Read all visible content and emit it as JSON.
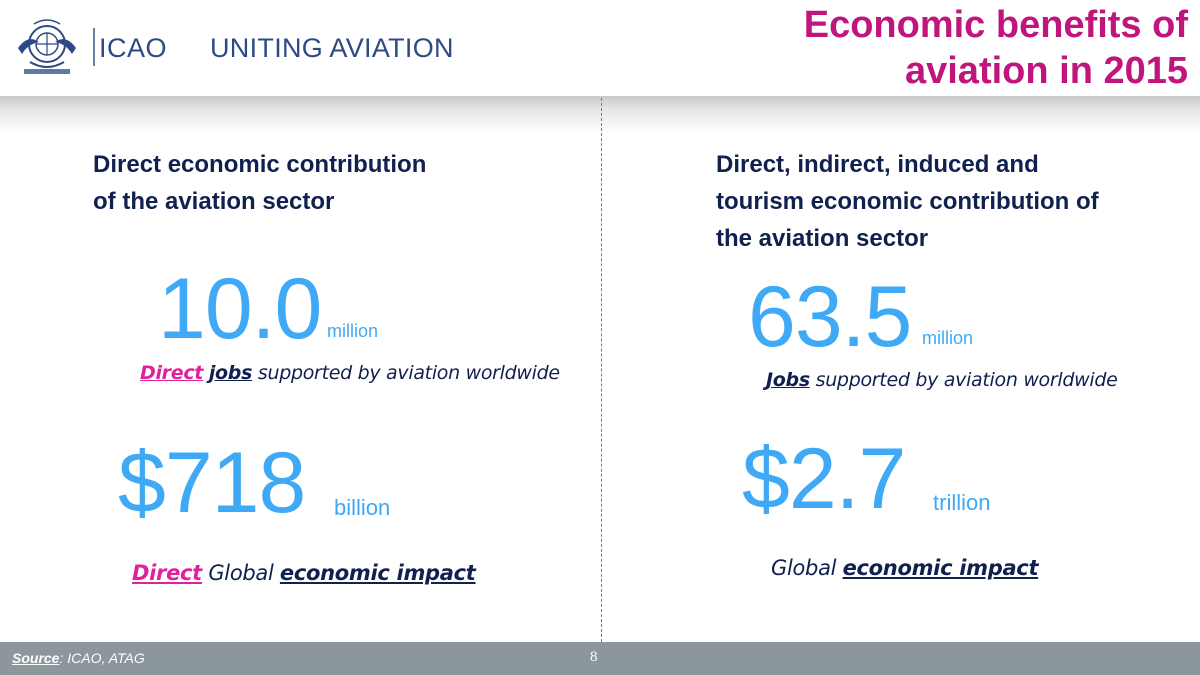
{
  "header": {
    "org_name": "ICAO",
    "tagline": "UNITING AVIATION",
    "title_line1": "Economic benefits of",
    "title_line2": "aviation in 2015"
  },
  "left": {
    "heading_line1": "Direct economic contribution",
    "heading_line2": "of the aviation sector",
    "stat1": {
      "value": "10.0",
      "unit": "million",
      "caption_prefix": "Direct",
      "caption_key": "jobs",
      "caption_rest": "supported by aviation worldwide"
    },
    "stat2": {
      "value": "$718",
      "unit": "billion",
      "caption_prefix": "Direct",
      "caption_mid": "Global",
      "caption_key": "economic impact"
    }
  },
  "right": {
    "heading_line1": "Direct, indirect, induced and",
    "heading_line2": "tourism economic contribution of",
    "heading_line3": "the aviation sector",
    "stat1": {
      "value": "63.5",
      "unit": "million",
      "caption_key": "Jobs",
      "caption_rest": "supported by aviation worldwide"
    },
    "stat2": {
      "value": "$2.7",
      "unit": "trillion",
      "caption_mid": "Global",
      "caption_key": "economic impact"
    }
  },
  "footer": {
    "source_label": "Source",
    "source_text": ": ICAO, ATAG",
    "page_number": "8"
  },
  "colors": {
    "title": "#c0157c",
    "accent_pink": "#e0209c",
    "stat_blue": "#3fa9f5",
    "navy": "#10204f",
    "footer_bar": "#8c979d"
  },
  "icons": {
    "logo": "icao-emblem-icon"
  }
}
